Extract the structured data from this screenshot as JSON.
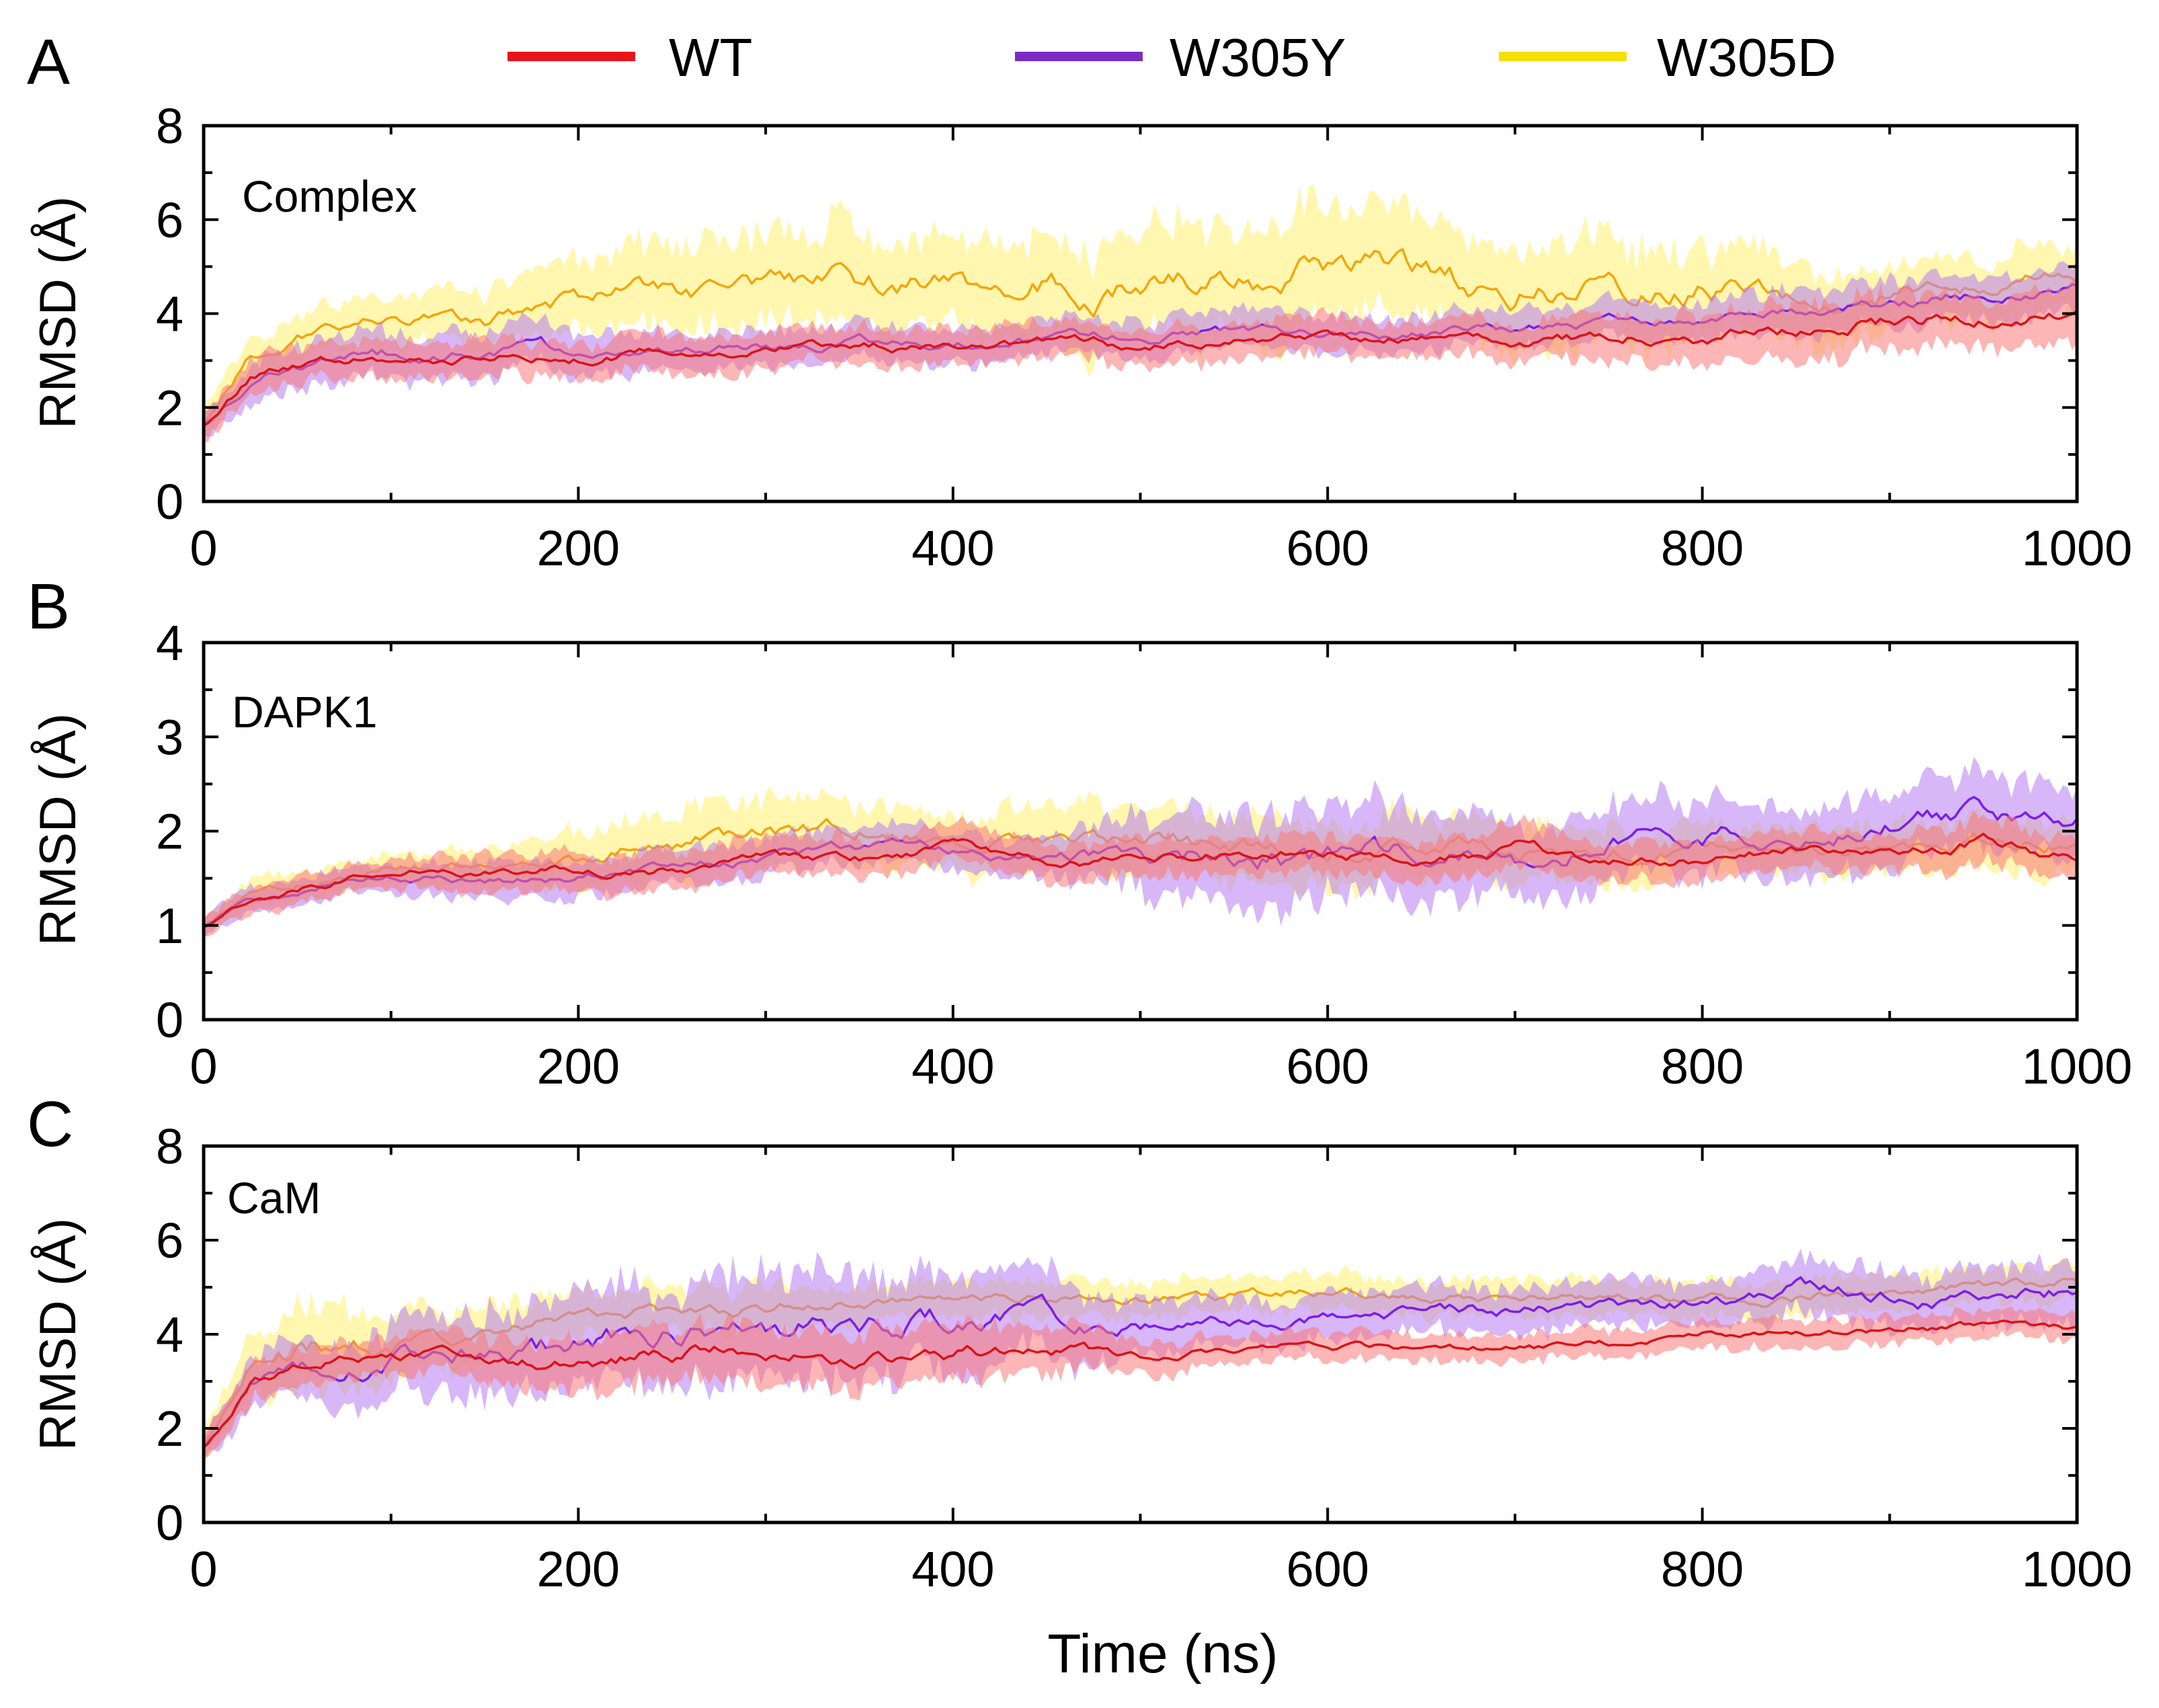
{
  "chart_data": {
    "type": "line",
    "legend": {
      "placement": "top-center",
      "entries": [
        {
          "name": "WT",
          "color": "#e8141a"
        },
        {
          "name": "W305Y",
          "color": "#7a2dc4"
        },
        {
          "name": "W305D",
          "color": "#f5e000"
        }
      ]
    },
    "xlabel": "Time (ns)",
    "series_style": {
      "WT": {
        "line": "#d8141a",
        "band": "#f77a78"
      },
      "W305Y": {
        "line": "#7a1fe8",
        "band": "#b77cf0"
      },
      "W305D": {
        "line": "#f2a611",
        "band": "#fff06e"
      }
    },
    "panels": [
      {
        "letter": "A",
        "name": "Complex",
        "ylabel": "RMSD (Å)",
        "xlim": [
          0,
          1000
        ],
        "ylim": [
          0,
          8
        ],
        "xticks": [
          "0",
          "200",
          "400",
          "600",
          "800",
          "1000"
        ],
        "yticks": [
          "0",
          "2",
          "4",
          "6",
          "8"
        ],
        "x": [
          0,
          25,
          50,
          75,
          100,
          150,
          200,
          250,
          300,
          350,
          400,
          450,
          500,
          550,
          600,
          650,
          700,
          750,
          800,
          850,
          900,
          950,
          1000
        ],
        "series": [
          {
            "name": "WT",
            "values": [
              1.6,
              2.7,
              2.9,
              3.0,
              3.0,
              3.1,
              3.1,
              3.2,
              3.3,
              3.3,
              3.3,
              3.4,
              3.3,
              3.4,
              3.5,
              3.5,
              3.4,
              3.5,
              3.5,
              3.6,
              3.8,
              3.9,
              4.0
            ],
            "spread": [
              0.3,
              0.4,
              0.4,
              0.4,
              0.4,
              0.4,
              0.4,
              0.4,
              0.4,
              0.4,
              0.4,
              0.4,
              0.4,
              0.4,
              0.4,
              0.4,
              0.4,
              0.5,
              0.5,
              0.6,
              0.6,
              0.5,
              0.6
            ]
          },
          {
            "name": "W305Y",
            "values": [
              1.6,
              2.6,
              2.9,
              3.0,
              3.1,
              3.1,
              3.2,
              3.2,
              3.3,
              3.4,
              3.3,
              3.5,
              3.5,
              3.6,
              3.6,
              3.6,
              3.7,
              3.8,
              3.8,
              3.9,
              4.1,
              4.4,
              4.5
            ],
            "spread": [
              0.3,
              0.4,
              0.5,
              0.5,
              0.5,
              0.5,
              0.5,
              0.4,
              0.4,
              0.4,
              0.4,
              0.4,
              0.4,
              0.4,
              0.4,
              0.4,
              0.4,
              0.4,
              0.4,
              0.5,
              0.5,
              0.5,
              0.5
            ]
          },
          {
            "name": "W305D",
            "values": [
              1.6,
              3.1,
              3.5,
              3.8,
              4.0,
              3.8,
              4.3,
              4.4,
              4.6,
              4.7,
              4.5,
              4.6,
              4.5,
              4.7,
              4.9,
              4.8,
              4.5,
              4.5,
              4.6,
              4.4,
              4.5,
              4.7,
              4.8
            ],
            "spread": [
              0.3,
              0.5,
              0.5,
              0.5,
              0.5,
              0.6,
              0.8,
              0.9,
              1.0,
              1.1,
              1.0,
              1.1,
              1.2,
              1.2,
              1.3,
              1.2,
              1.1,
              1.1,
              1.0,
              0.8,
              0.7,
              0.7,
              0.7
            ]
          }
        ]
      },
      {
        "letter": "B",
        "name": "DAPK1",
        "ylabel": "RMSD (Å)",
        "xlim": [
          0,
          1000
        ],
        "ylim": [
          0,
          4
        ],
        "xticks": [
          "0",
          "200",
          "400",
          "600",
          "800",
          "1000"
        ],
        "yticks": [
          "0",
          "1",
          "2",
          "3",
          "4"
        ],
        "x": [
          0,
          25,
          50,
          75,
          100,
          150,
          200,
          250,
          300,
          350,
          400,
          450,
          500,
          550,
          600,
          650,
          700,
          750,
          800,
          850,
          900,
          950,
          1000
        ],
        "series": [
          {
            "name": "WT",
            "values": [
              1.0,
              1.3,
              1.4,
              1.5,
              1.6,
              1.6,
              1.6,
              1.6,
              1.7,
              1.7,
              1.8,
              1.7,
              1.7,
              1.8,
              1.8,
              1.7,
              1.8,
              1.7,
              1.7,
              1.8,
              1.8,
              1.9,
              1.7
            ],
            "spread": [
              0.1,
              0.15,
              0.15,
              0.15,
              0.15,
              0.2,
              0.2,
              0.2,
              0.2,
              0.2,
              0.2,
              0.2,
              0.2,
              0.2,
              0.2,
              0.2,
              0.25,
              0.2,
              0.2,
              0.2,
              0.2,
              0.25,
              0.2
            ]
          },
          {
            "name": "W305Y",
            "values": [
              1.0,
              1.3,
              1.4,
              1.5,
              1.5,
              1.5,
              1.5,
              1.6,
              1.7,
              1.8,
              1.8,
              1.7,
              1.8,
              1.7,
              1.7,
              1.7,
              1.7,
              1.9,
              1.9,
              2.0,
              2.1,
              2.2,
              2.1
            ],
            "spread": [
              0.1,
              0.15,
              0.15,
              0.15,
              0.15,
              0.2,
              0.2,
              0.2,
              0.2,
              0.2,
              0.2,
              0.2,
              0.4,
              0.5,
              0.5,
              0.5,
              0.4,
              0.4,
              0.4,
              0.4,
              0.4,
              0.4,
              0.4
            ]
          },
          {
            "name": "W305D",
            "values": [
              1.0,
              1.3,
              1.4,
              1.5,
              1.6,
              1.6,
              1.7,
              1.9,
              2.0,
              2.0,
              1.9,
              1.9,
              1.9,
              1.8,
              1.8,
              1.9,
              1.8,
              1.8,
              1.8,
              1.8,
              1.8,
              1.9,
              1.8
            ],
            "spread": [
              0.1,
              0.15,
              0.15,
              0.15,
              0.15,
              0.2,
              0.3,
              0.35,
              0.35,
              0.35,
              0.3,
              0.35,
              0.35,
              0.35,
              0.35,
              0.35,
              0.3,
              0.3,
              0.25,
              0.25,
              0.25,
              0.3,
              0.3
            ]
          }
        ]
      },
      {
        "letter": "C",
        "name": "CaM",
        "ylabel": "RMSD (Å)",
        "xlim": [
          0,
          1000
        ],
        "ylim": [
          0,
          8
        ],
        "xticks": [
          "0",
          "200",
          "400",
          "600",
          "800",
          "1000"
        ],
        "yticks": [
          "0",
          "2",
          "4",
          "6",
          "8"
        ],
        "x": [
          0,
          25,
          50,
          75,
          100,
          150,
          200,
          250,
          300,
          350,
          400,
          450,
          500,
          550,
          600,
          650,
          700,
          750,
          800,
          850,
          900,
          950,
          1000
        ],
        "series": [
          {
            "name": "WT",
            "values": [
              1.6,
              3.0,
              3.3,
              3.5,
              3.5,
              3.5,
              3.4,
              3.6,
              3.7,
              3.6,
              3.5,
              3.8,
              3.5,
              3.7,
              3.8,
              3.7,
              3.7,
              3.8,
              4.0,
              4.0,
              4.1,
              4.2,
              4.1
            ],
            "spread": [
              0.3,
              0.4,
              0.4,
              0.4,
              0.4,
              0.5,
              0.6,
              0.6,
              0.6,
              0.6,
              0.6,
              0.5,
              0.4,
              0.3,
              0.3,
              0.3,
              0.3,
              0.3,
              0.3,
              0.3,
              0.3,
              0.3,
              0.3
            ]
          },
          {
            "name": "W305Y",
            "values": [
              1.6,
              2.9,
              3.2,
              3.3,
              3.4,
              3.5,
              3.7,
              4.1,
              4.3,
              4.3,
              4.3,
              4.4,
              4.2,
              4.3,
              4.4,
              4.5,
              4.5,
              4.5,
              4.6,
              5.0,
              4.8,
              4.6,
              5.0
            ],
            "spread": [
              0.3,
              0.5,
              0.6,
              0.7,
              0.8,
              0.9,
              1.0,
              1.1,
              1.2,
              1.1,
              1.0,
              0.9,
              0.6,
              0.5,
              0.5,
              0.5,
              0.5,
              0.5,
              0.5,
              0.6,
              0.6,
              0.6,
              0.7
            ]
          },
          {
            "name": "W305D",
            "values": [
              1.6,
              3.3,
              3.6,
              3.8,
              3.8,
              4.0,
              4.3,
              4.5,
              4.6,
              4.7,
              4.7,
              4.8,
              4.8,
              4.8,
              4.9,
              4.8,
              4.8,
              4.7,
              4.7,
              4.8,
              4.9,
              5.0,
              5.2
            ],
            "spread": [
              0.3,
              0.7,
              0.9,
              0.9,
              0.7,
              0.6,
              0.5,
              0.5,
              0.5,
              0.4,
              0.4,
              0.4,
              0.4,
              0.4,
              0.4,
              0.4,
              0.4,
              0.4,
              0.4,
              0.4,
              0.4,
              0.4,
              0.4
            ]
          }
        ]
      }
    ]
  }
}
